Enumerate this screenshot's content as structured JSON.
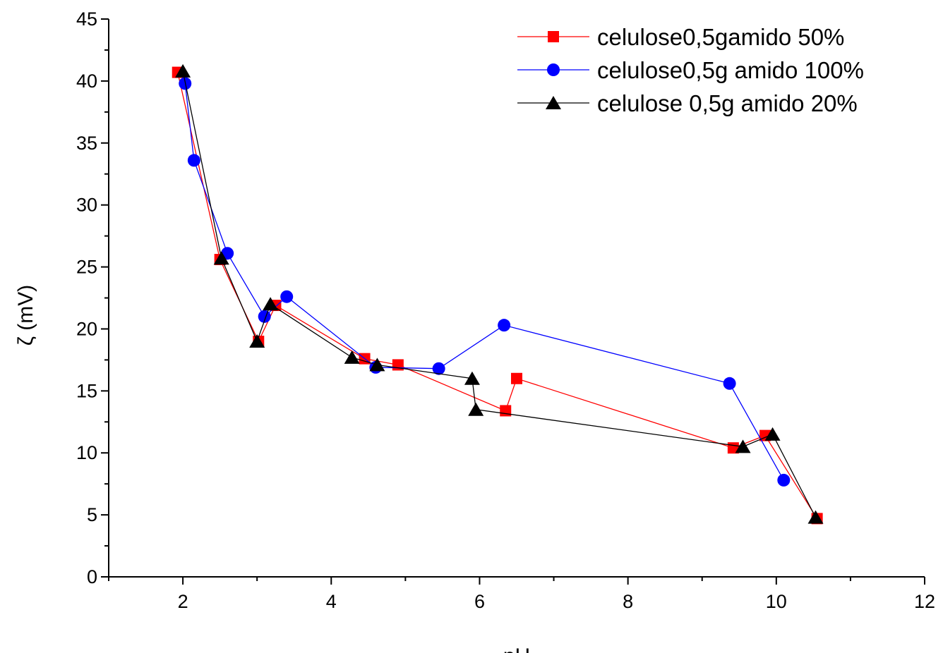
{
  "chart_data": {
    "type": "line",
    "xlabel": "pH",
    "ylabel": "ζ (mV)",
    "xlim": [
      1,
      12
    ],
    "ylim": [
      0,
      45
    ],
    "x_ticks": [
      2,
      4,
      6,
      8,
      10,
      12
    ],
    "y_ticks": [
      0,
      5,
      10,
      15,
      20,
      25,
      30,
      35,
      40,
      45
    ],
    "grid": false,
    "legend_position": "top-right",
    "series": [
      {
        "name": "celulose0,5gamido 50%",
        "color": "#ff0000",
        "marker": "square",
        "points": [
          [
            1.93,
            40.7
          ],
          [
            2.5,
            25.6
          ],
          [
            3.02,
            19.0
          ],
          [
            3.25,
            21.9
          ],
          [
            4.45,
            17.6
          ],
          [
            4.9,
            17.1
          ],
          [
            6.35,
            13.4
          ],
          [
            6.5,
            16.0
          ],
          [
            9.42,
            10.4
          ],
          [
            9.85,
            11.4
          ],
          [
            10.55,
            4.7
          ]
        ]
      },
      {
        "name": "celulose0,5g amido 100%",
        "color": "#0000ff",
        "marker": "circle",
        "points": [
          [
            2.03,
            39.8
          ],
          [
            2.15,
            33.6
          ],
          [
            2.6,
            26.1
          ],
          [
            3.1,
            21.0
          ],
          [
            3.4,
            22.6
          ],
          [
            4.6,
            16.9
          ],
          [
            5.45,
            16.8
          ],
          [
            6.33,
            20.3
          ],
          [
            9.37,
            15.6
          ],
          [
            10.1,
            7.8
          ]
        ]
      },
      {
        "name": "celulose 0,5g amido 20%",
        "color": "#000000",
        "marker": "triangle",
        "points": [
          [
            2.0,
            40.8
          ],
          [
            2.52,
            25.7
          ],
          [
            3.0,
            19.0
          ],
          [
            3.18,
            22.0
          ],
          [
            4.28,
            17.7
          ],
          [
            4.62,
            17.1
          ],
          [
            5.9,
            16.0
          ],
          [
            5.95,
            13.5
          ],
          [
            9.55,
            10.5
          ],
          [
            9.95,
            11.5
          ],
          [
            10.53,
            4.8
          ]
        ]
      }
    ]
  }
}
